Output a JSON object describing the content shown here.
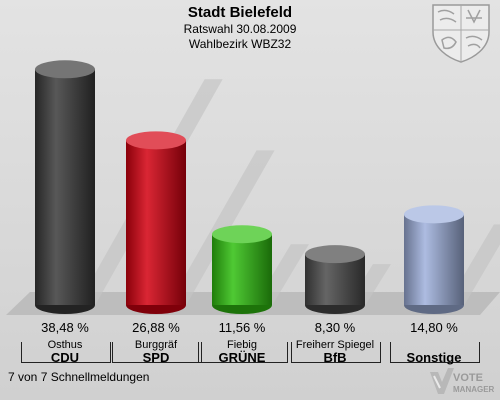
{
  "header": {
    "title": "Stadt Bielefeld",
    "subtitle": "Ratswahl 30.08.2009",
    "district": "Wahlbezirk WBZ32"
  },
  "footer": {
    "text": "7 von 7 Schnellmeldungen"
  },
  "logo": {
    "line1": "VOTE",
    "line2": "MANAGER"
  },
  "chart_data": {
    "type": "bar",
    "title": "Stadt Bielefeld",
    "ylim": [
      0,
      40
    ],
    "categories": [
      "CDU",
      "SPD",
      "GRÜNE",
      "BfB",
      "Sonstige"
    ],
    "candidates": [
      "Osthus",
      "Burggräf",
      "Fiebig",
      "Freiherr Spiegel",
      ""
    ],
    "values": [
      38.48,
      26.88,
      11.56,
      8.3,
      14.8
    ],
    "value_labels": [
      "38,48 %",
      "26,88 %",
      "11,56 %",
      "8,30 %",
      "14,80 %"
    ],
    "colors": [
      "#3a3a3a",
      "#d40010",
      "#30c010",
      "#4a4a4a",
      "#9eb0dc"
    ],
    "grid": false,
    "legend": "none"
  }
}
